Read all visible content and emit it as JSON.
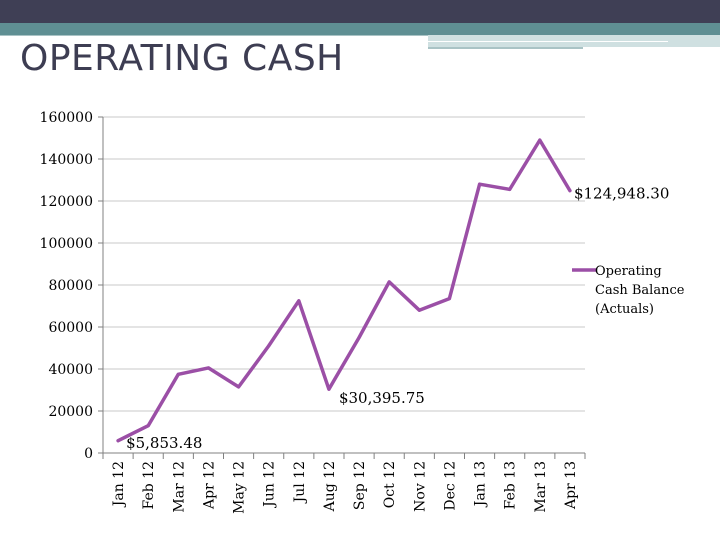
{
  "slide": {
    "title": "OPERATING CASH"
  },
  "colors": {
    "series": "#9b4fa6",
    "grid": "#c8c8c8",
    "title": "#3d3d52"
  },
  "chart_data": {
    "type": "line",
    "title": "",
    "xlabel": "",
    "ylabel": "",
    "ylim": [
      0,
      160000
    ],
    "yticks": [
      "0",
      "20000",
      "40000",
      "60000",
      "80000",
      "100000",
      "120000",
      "140000",
      "160000"
    ],
    "categories": [
      "Jan 12",
      "Feb 12",
      "Mar 12",
      "Apr 12",
      "May 12",
      "Jun 12",
      "Jul 12",
      "Aug 12",
      "Sep 12",
      "Oct 12",
      "Nov 12",
      "Dec 12",
      "Jan 13",
      "Feb 13",
      "Mar 13",
      "Apr 13"
    ],
    "series": [
      {
        "name": "Operating Cash Balance (Actuals)",
        "legend_lines": [
          "Operating",
          "Cash Balance",
          "(Actuals)"
        ],
        "values": [
          5853.48,
          13000,
          37500,
          40500,
          31500,
          51000,
          72500,
          30395.75,
          55000,
          81500,
          68000,
          73500,
          128000,
          125500,
          149000,
          124948.3
        ]
      }
    ],
    "annotations": [
      {
        "index": 0,
        "text": "$5,853.48"
      },
      {
        "index": 7,
        "text": "$30,395.75"
      },
      {
        "index": 15,
        "text": "$124,948.30"
      }
    ],
    "legend_position": "right"
  }
}
